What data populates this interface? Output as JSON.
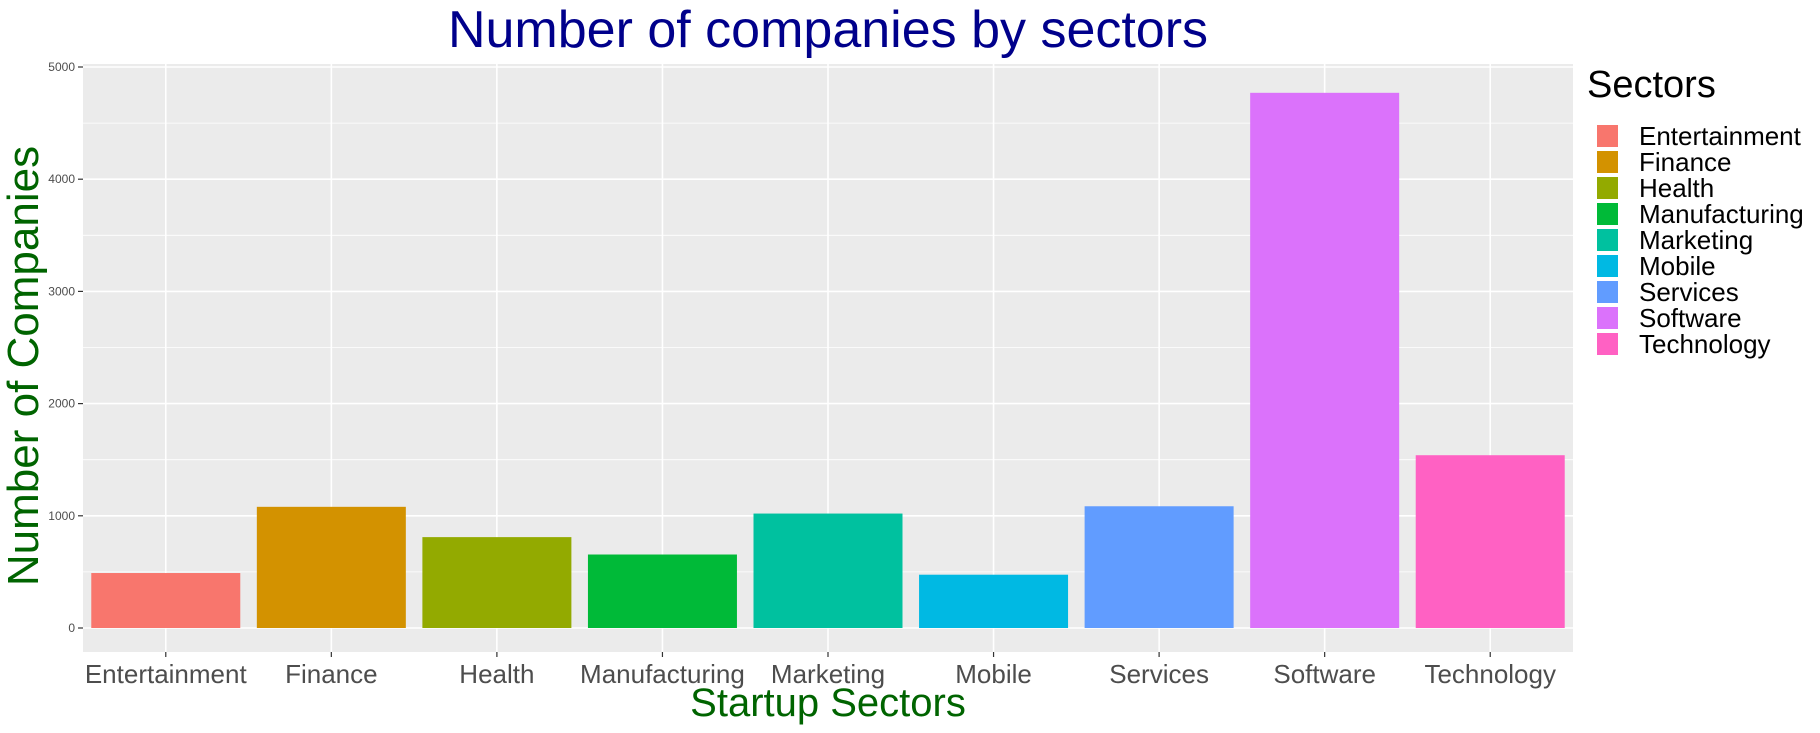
{
  "chart_data": {
    "type": "bar",
    "title": "Number of companies by sectors",
    "xlabel": "Startup Sectors",
    "ylabel": "Number of Companies",
    "categories": [
      "Entertainment",
      "Finance",
      "Health",
      "Manufacturing",
      "Marketing",
      "Mobile",
      "Services",
      "Software",
      "Technology"
    ],
    "values": [
      490,
      1080,
      810,
      655,
      1020,
      475,
      1085,
      4770,
      1540
    ],
    "colors": [
      "#F8766D",
      "#D39200",
      "#93AA00",
      "#00BA38",
      "#00C19F",
      "#00B9E3",
      "#619CFF",
      "#DB72FB",
      "#FF61C3"
    ],
    "ylim": [
      0,
      5000
    ],
    "yticks": [
      0,
      1000,
      2000,
      3000,
      4000,
      5000
    ],
    "grid": true,
    "legend": {
      "title": "Sectors",
      "position": "right",
      "items": [
        "Entertainment",
        "Finance",
        "Health",
        "Manufacturing",
        "Marketing",
        "Mobile",
        "Services",
        "Software",
        "Technology"
      ]
    },
    "panel_background": "#EBEBEB",
    "title_color": "#00008B",
    "axis_label_color": "#006400"
  }
}
